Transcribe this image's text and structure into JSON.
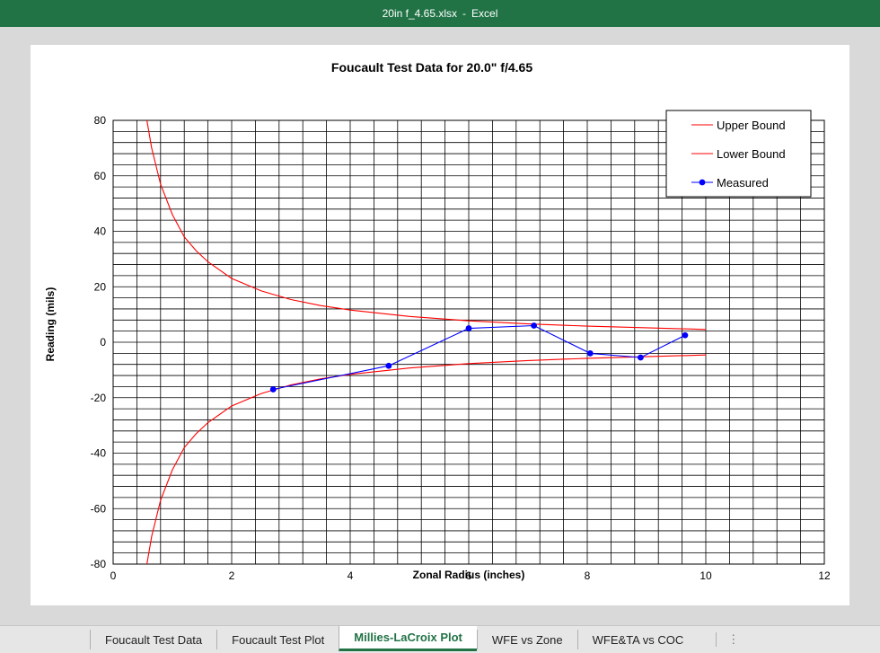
{
  "window": {
    "file_name": "20in f_4.65.xlsx",
    "separator": "-",
    "app_name": "Excel"
  },
  "tabs": [
    {
      "label": "Foucault Test Data",
      "active": false
    },
    {
      "label": "Foucault Test Plot",
      "active": false
    },
    {
      "label": "Millies-LaCroix Plot",
      "active": true
    },
    {
      "label": "WFE vs Zone",
      "active": false
    },
    {
      "label": "WFE&TA vs COC",
      "active": false
    }
  ],
  "tabs_more_icon": "vertical-ellipsis-icon",
  "colors": {
    "accent": "#217346",
    "bound": "#ff0000",
    "measured": "#0000ff"
  },
  "chart_data": {
    "type": "line",
    "title": "Foucault Test Data for 20.0\" f/4.65",
    "xlabel": "Zonal Radius (inches)",
    "ylabel": "Reading (mils)",
    "xlim": [
      0,
      12
    ],
    "ylim": [
      -80,
      80
    ],
    "xticks": [
      "0",
      "2",
      "4",
      "6",
      "8",
      "10",
      "12"
    ],
    "yticks": [
      "80",
      "60",
      "40",
      "20",
      "0",
      "-20",
      "-40",
      "-60",
      "-80"
    ],
    "grid": true,
    "legend": "top-right",
    "series": [
      {
        "name": "Upper Bound",
        "color": "#ff0000",
        "markers": false,
        "x": [
          0.57,
          0.65,
          0.8,
          1.0,
          1.2,
          1.4,
          1.6,
          2.0,
          2.5,
          3.0,
          3.5,
          4.0,
          5.0,
          6.0,
          7.0,
          8.0,
          9.0,
          10.0
        ],
        "y": [
          80,
          70,
          57,
          46,
          38,
          33,
          29,
          23,
          18.5,
          15.4,
          13.2,
          11.6,
          9.3,
          7.7,
          6.6,
          5.8,
          5.2,
          4.6
        ]
      },
      {
        "name": "Lower Bound",
        "color": "#ff0000",
        "markers": false,
        "x": [
          0.57,
          0.65,
          0.8,
          1.0,
          1.2,
          1.4,
          1.6,
          2.0,
          2.5,
          3.0,
          3.5,
          4.0,
          5.0,
          6.0,
          7.0,
          8.0,
          9.0,
          10.0
        ],
        "y": [
          -80,
          -70,
          -57,
          -46,
          -38,
          -33,
          -29,
          -23,
          -18.5,
          -15.4,
          -13.2,
          -11.6,
          -9.3,
          -7.7,
          -6.6,
          -5.8,
          -5.2,
          -4.6
        ]
      },
      {
        "name": "Measured",
        "color": "#0000ff",
        "markers": true,
        "x": [
          2.7,
          4.65,
          6.0,
          7.1,
          8.05,
          8.9,
          9.65
        ],
        "y": [
          -17,
          -8.5,
          5,
          6,
          -4,
          -5.5,
          2.5
        ]
      }
    ]
  }
}
